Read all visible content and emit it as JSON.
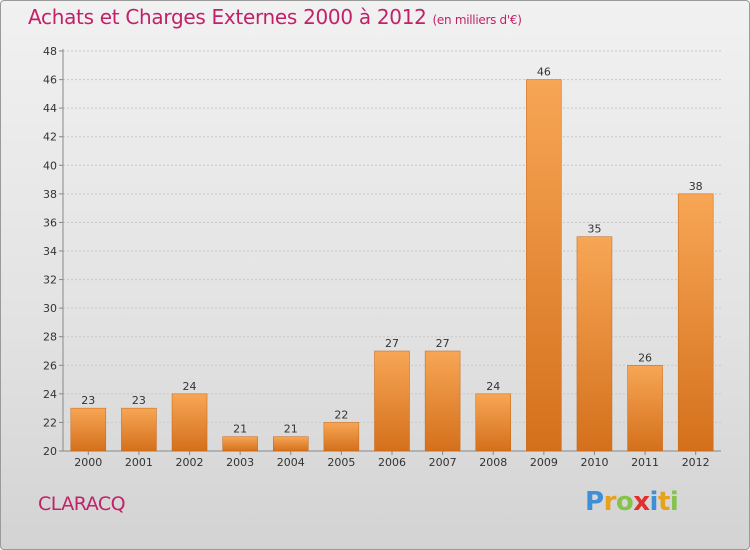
{
  "header": {
    "title": "Achats et Charges Externes 2000 à 2012",
    "subtitle": "(en milliers d'€)"
  },
  "footer": {
    "commune": "CLARACQ",
    "logo_letters": [
      "P",
      "r",
      "o",
      "x",
      "i",
      "t",
      "i"
    ]
  },
  "colors": {
    "title": "#c0226a",
    "bar_top": "#f7a655",
    "bar_bottom": "#d4701c",
    "grid": "#c8c8c8"
  },
  "chart_data": {
    "type": "bar",
    "title": "Achats et Charges Externes 2000 à 2012",
    "subtitle": "(en milliers d'€)",
    "categories": [
      "2000",
      "2001",
      "2002",
      "2003",
      "2004",
      "2005",
      "2006",
      "2007",
      "2008",
      "2009",
      "2010",
      "2011",
      "2012"
    ],
    "values": [
      23,
      23,
      24,
      21,
      21,
      22,
      27,
      27,
      24,
      46,
      35,
      26,
      38
    ],
    "ylim": [
      20,
      48
    ],
    "yticks": [
      20,
      22,
      24,
      26,
      28,
      30,
      32,
      34,
      36,
      38,
      40,
      42,
      44,
      46,
      48
    ],
    "grid": true,
    "xlabel": "",
    "ylabel": ""
  }
}
